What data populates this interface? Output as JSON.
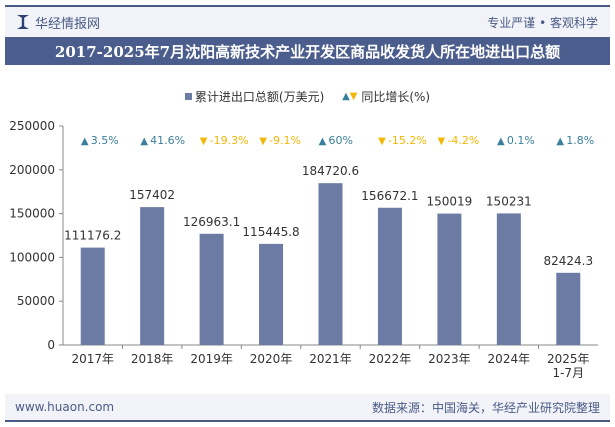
{
  "header": {
    "brand": "华经情报网",
    "slogan": "专业严谨 • 客观科学"
  },
  "footer": {
    "url": "www.huaon.com",
    "source": "数据来源：中国海关，华经产业研究院整理"
  },
  "colors": {
    "bar": "#6c7ba3",
    "up": "#3a7f9c",
    "down": "#f2b705",
    "title": "#4b5d8c"
  },
  "chart_data": {
    "type": "bar",
    "title": "2017-2025年7月沈阳高新技术产业开发区商品收发货人所在地进出口总额",
    "legend": {
      "bar": "累计进出口总额(万美元)",
      "line": "同比增长(%)",
      "position": "top"
    },
    "categories": [
      "2017年",
      "2018年",
      "2019年",
      "2020年",
      "2021年",
      "2022年",
      "2023年",
      "2024年",
      "2025年\n1-7月"
    ],
    "values": [
      111176.2,
      157402,
      126963.1,
      115445.8,
      184720.6,
      156672.1,
      150019,
      150231,
      82424.3
    ],
    "value_labels": [
      "111176.2",
      "157402",
      "126963.1",
      "115445.8",
      "184720.6",
      "156672.1",
      "150019",
      "150231",
      "82424.3"
    ],
    "growth": [
      3.5,
      41.6,
      -19.3,
      -9.1,
      60,
      -15.2,
      -4.2,
      0.1,
      1.8
    ],
    "growth_labels": [
      "3.5%",
      "41.6%",
      "-19.3%",
      "-9.1%",
      "60%",
      "-15.2%",
      "-4.2%",
      "0.1%",
      "1.8%"
    ],
    "yticks": [
      "0",
      "50000",
      "100000",
      "150000",
      "200000",
      "250000"
    ],
    "ylim": [
      0,
      250000
    ]
  }
}
